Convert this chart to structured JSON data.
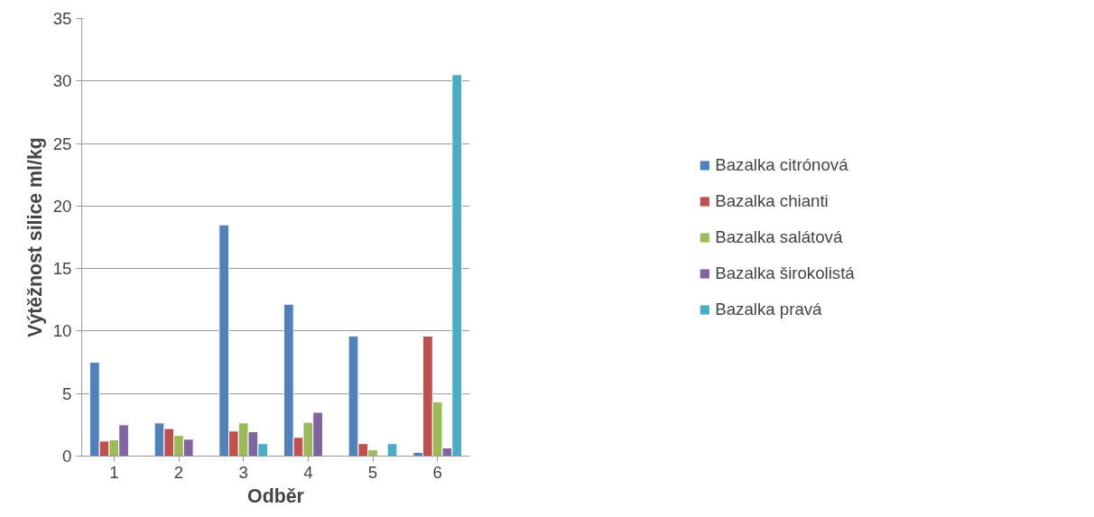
{
  "chart_data": {
    "type": "bar",
    "xlabel": "Odběr",
    "ylabel": "Výtěžnost silice ml/kg",
    "categories": [
      "1",
      "2",
      "3",
      "4",
      "5",
      "6"
    ],
    "series": [
      {
        "name": "Bazalka citrónová",
        "color": "#4f81bd",
        "values": [
          7.5,
          2.65,
          18.5,
          12.15,
          9.6,
          0.3
        ]
      },
      {
        "name": "Bazalka chianti",
        "color": "#c0504d",
        "values": [
          1.2,
          2.2,
          2.0,
          1.5,
          1.0,
          9.6
        ]
      },
      {
        "name": "Bazalka salátová",
        "color": "#9bbb59",
        "values": [
          1.3,
          1.65,
          2.65,
          2.7,
          0.5,
          4.35
        ]
      },
      {
        "name": "Bazalka širokolistá",
        "color": "#8064a2",
        "values": [
          2.5,
          1.35,
          1.95,
          3.5,
          null,
          0.65
        ]
      },
      {
        "name": "Bazalka pravá",
        "color": "#4bacc6",
        "values": [
          null,
          null,
          1.0,
          null,
          1.0,
          30.5
        ]
      }
    ],
    "ylim": [
      0,
      35
    ],
    "yticks": [
      0,
      5,
      10,
      15,
      20,
      25,
      30,
      35
    ],
    "grid": "y",
    "legend": "right"
  }
}
